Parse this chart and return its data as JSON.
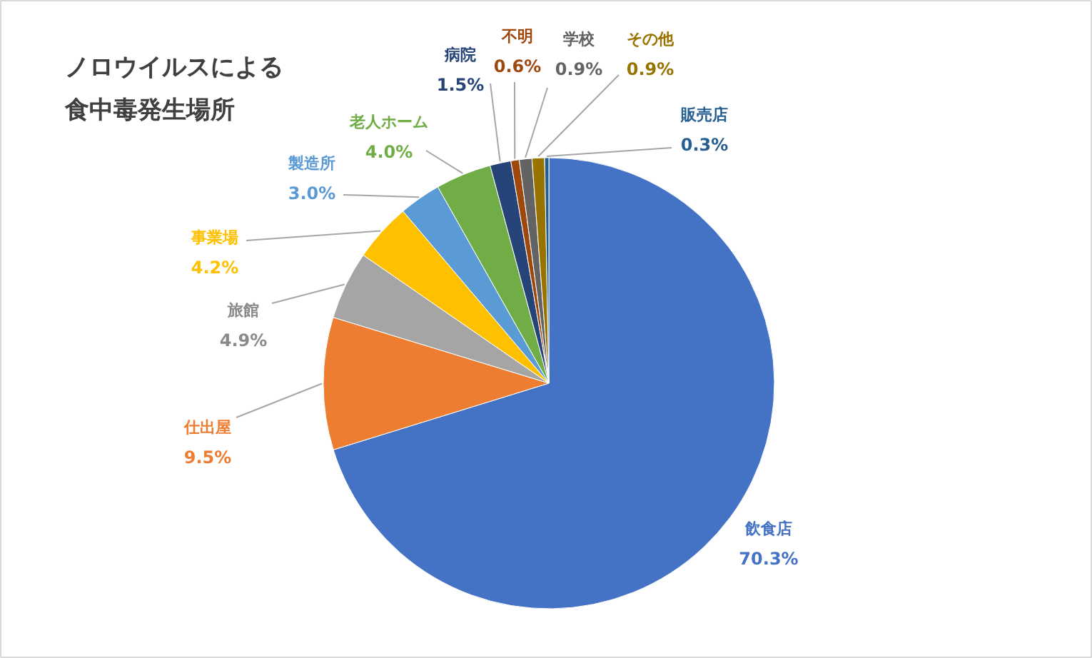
{
  "chart_data": {
    "type": "pie",
    "title": "ノロウイルスによる食中毒発生場所",
    "categories": [
      "飲食店",
      "仕出屋",
      "旅館",
      "事業場",
      "製造所",
      "老人ホーム",
      "病院",
      "不明",
      "学校",
      "その他",
      "販売店"
    ],
    "values": [
      70.3,
      9.5,
      4.9,
      4.2,
      3.0,
      4.0,
      1.5,
      0.6,
      0.9,
      0.9,
      0.3
    ],
    "value_labels": [
      "70.3%",
      "9.5%",
      "4.9%",
      "4.2%",
      "3.0%",
      "4.0%",
      "1.5%",
      "0.6%",
      "0.9%",
      "0.9%",
      "0.3%"
    ],
    "colors": [
      "#4472c4",
      "#ed7d31",
      "#a5a5a5",
      "#ffc000",
      "#5b9bd5",
      "#70ad47",
      "#264478",
      "#9e480e",
      "#636363",
      "#997300",
      "#255e91"
    ]
  }
}
